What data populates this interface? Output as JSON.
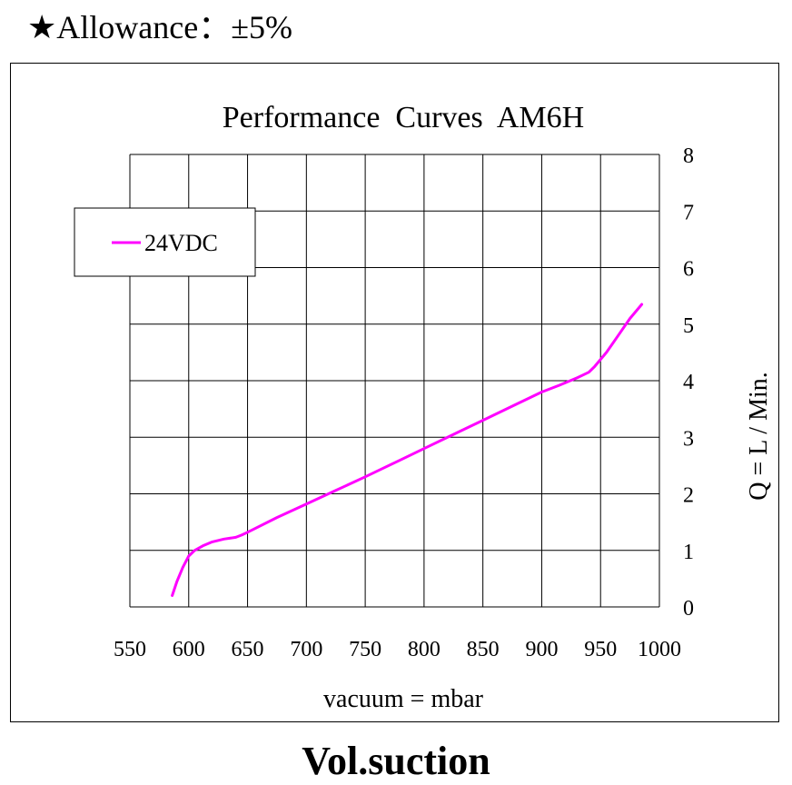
{
  "header": {
    "star_icon": "black-star",
    "allowance_text": "Allowance：±5%"
  },
  "footer": {
    "label": "Vol.suction"
  },
  "chart_data": {
    "type": "line",
    "title": "Performance  Curves  AM6H",
    "xlabel": "vacuum = mbar",
    "ylabel": "Q = L / Min.",
    "xlim": [
      550,
      1000
    ],
    "ylim": [
      0,
      8
    ],
    "x_ticks": [
      550,
      600,
      650,
      700,
      750,
      800,
      850,
      900,
      950,
      1000
    ],
    "y_ticks": [
      0,
      1,
      2,
      3,
      4,
      5,
      6,
      7,
      8
    ],
    "y_axis_side": "right",
    "grid": true,
    "legend_position": "top-left",
    "series": [
      {
        "name": "24VDC",
        "color": "#ff00ff",
        "points": [
          [
            586,
            0.2
          ],
          [
            590,
            0.45
          ],
          [
            595,
            0.7
          ],
          [
            600,
            0.9
          ],
          [
            605,
            1.0
          ],
          [
            612,
            1.08
          ],
          [
            620,
            1.15
          ],
          [
            630,
            1.2
          ],
          [
            640,
            1.23
          ],
          [
            645,
            1.27
          ],
          [
            650,
            1.32
          ],
          [
            675,
            1.58
          ],
          [
            700,
            1.82
          ],
          [
            725,
            2.06
          ],
          [
            750,
            2.3
          ],
          [
            775,
            2.55
          ],
          [
            800,
            2.8
          ],
          [
            825,
            3.05
          ],
          [
            850,
            3.3
          ],
          [
            875,
            3.55
          ],
          [
            900,
            3.8
          ],
          [
            915,
            3.92
          ],
          [
            930,
            4.05
          ],
          [
            940,
            4.15
          ],
          [
            945,
            4.25
          ],
          [
            955,
            4.5
          ],
          [
            965,
            4.8
          ],
          [
            975,
            5.1
          ],
          [
            985,
            5.35
          ]
        ]
      }
    ]
  }
}
